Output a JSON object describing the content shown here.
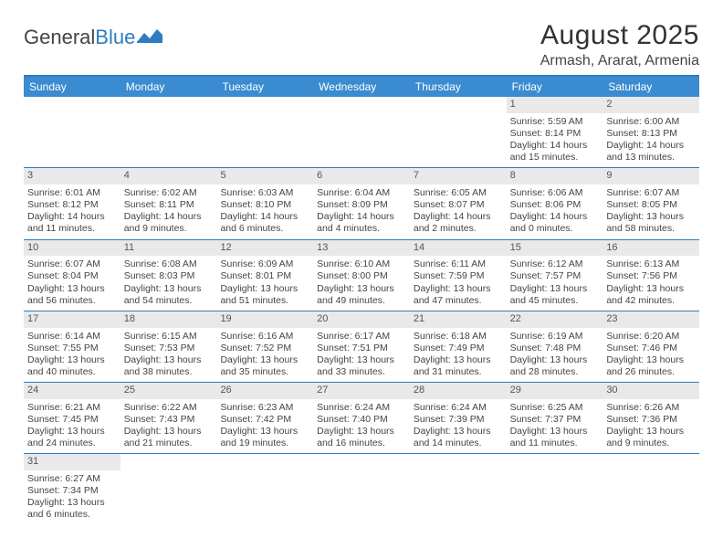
{
  "logo": {
    "text_a": "General",
    "text_b": "Blue"
  },
  "title": "August 2025",
  "subtitle": "Armash, Ararat, Armenia",
  "colors": {
    "header_bg": "#3a8bd0",
    "border": "#2f7cc0",
    "daynum_bg": "#e9e9e9",
    "text": "#444444",
    "title": "#333333"
  },
  "dow": [
    "Sunday",
    "Monday",
    "Tuesday",
    "Wednesday",
    "Thursday",
    "Friday",
    "Saturday"
  ],
  "weeks": [
    [
      null,
      null,
      null,
      null,
      null,
      {
        "n": "1",
        "sr": "Sunrise: 5:59 AM",
        "ss": "Sunset: 8:14 PM",
        "d1": "Daylight: 14 hours",
        "d2": "and 15 minutes."
      },
      {
        "n": "2",
        "sr": "Sunrise: 6:00 AM",
        "ss": "Sunset: 8:13 PM",
        "d1": "Daylight: 14 hours",
        "d2": "and 13 minutes."
      }
    ],
    [
      {
        "n": "3",
        "sr": "Sunrise: 6:01 AM",
        "ss": "Sunset: 8:12 PM",
        "d1": "Daylight: 14 hours",
        "d2": "and 11 minutes."
      },
      {
        "n": "4",
        "sr": "Sunrise: 6:02 AM",
        "ss": "Sunset: 8:11 PM",
        "d1": "Daylight: 14 hours",
        "d2": "and 9 minutes."
      },
      {
        "n": "5",
        "sr": "Sunrise: 6:03 AM",
        "ss": "Sunset: 8:10 PM",
        "d1": "Daylight: 14 hours",
        "d2": "and 6 minutes."
      },
      {
        "n": "6",
        "sr": "Sunrise: 6:04 AM",
        "ss": "Sunset: 8:09 PM",
        "d1": "Daylight: 14 hours",
        "d2": "and 4 minutes."
      },
      {
        "n": "7",
        "sr": "Sunrise: 6:05 AM",
        "ss": "Sunset: 8:07 PM",
        "d1": "Daylight: 14 hours",
        "d2": "and 2 minutes."
      },
      {
        "n": "8",
        "sr": "Sunrise: 6:06 AM",
        "ss": "Sunset: 8:06 PM",
        "d1": "Daylight: 14 hours",
        "d2": "and 0 minutes."
      },
      {
        "n": "9",
        "sr": "Sunrise: 6:07 AM",
        "ss": "Sunset: 8:05 PM",
        "d1": "Daylight: 13 hours",
        "d2": "and 58 minutes."
      }
    ],
    [
      {
        "n": "10",
        "sr": "Sunrise: 6:07 AM",
        "ss": "Sunset: 8:04 PM",
        "d1": "Daylight: 13 hours",
        "d2": "and 56 minutes."
      },
      {
        "n": "11",
        "sr": "Sunrise: 6:08 AM",
        "ss": "Sunset: 8:03 PM",
        "d1": "Daylight: 13 hours",
        "d2": "and 54 minutes."
      },
      {
        "n": "12",
        "sr": "Sunrise: 6:09 AM",
        "ss": "Sunset: 8:01 PM",
        "d1": "Daylight: 13 hours",
        "d2": "and 51 minutes."
      },
      {
        "n": "13",
        "sr": "Sunrise: 6:10 AM",
        "ss": "Sunset: 8:00 PM",
        "d1": "Daylight: 13 hours",
        "d2": "and 49 minutes."
      },
      {
        "n": "14",
        "sr": "Sunrise: 6:11 AM",
        "ss": "Sunset: 7:59 PM",
        "d1": "Daylight: 13 hours",
        "d2": "and 47 minutes."
      },
      {
        "n": "15",
        "sr": "Sunrise: 6:12 AM",
        "ss": "Sunset: 7:57 PM",
        "d1": "Daylight: 13 hours",
        "d2": "and 45 minutes."
      },
      {
        "n": "16",
        "sr": "Sunrise: 6:13 AM",
        "ss": "Sunset: 7:56 PM",
        "d1": "Daylight: 13 hours",
        "d2": "and 42 minutes."
      }
    ],
    [
      {
        "n": "17",
        "sr": "Sunrise: 6:14 AM",
        "ss": "Sunset: 7:55 PM",
        "d1": "Daylight: 13 hours",
        "d2": "and 40 minutes."
      },
      {
        "n": "18",
        "sr": "Sunrise: 6:15 AM",
        "ss": "Sunset: 7:53 PM",
        "d1": "Daylight: 13 hours",
        "d2": "and 38 minutes."
      },
      {
        "n": "19",
        "sr": "Sunrise: 6:16 AM",
        "ss": "Sunset: 7:52 PM",
        "d1": "Daylight: 13 hours",
        "d2": "and 35 minutes."
      },
      {
        "n": "20",
        "sr": "Sunrise: 6:17 AM",
        "ss": "Sunset: 7:51 PM",
        "d1": "Daylight: 13 hours",
        "d2": "and 33 minutes."
      },
      {
        "n": "21",
        "sr": "Sunrise: 6:18 AM",
        "ss": "Sunset: 7:49 PM",
        "d1": "Daylight: 13 hours",
        "d2": "and 31 minutes."
      },
      {
        "n": "22",
        "sr": "Sunrise: 6:19 AM",
        "ss": "Sunset: 7:48 PM",
        "d1": "Daylight: 13 hours",
        "d2": "and 28 minutes."
      },
      {
        "n": "23",
        "sr": "Sunrise: 6:20 AM",
        "ss": "Sunset: 7:46 PM",
        "d1": "Daylight: 13 hours",
        "d2": "and 26 minutes."
      }
    ],
    [
      {
        "n": "24",
        "sr": "Sunrise: 6:21 AM",
        "ss": "Sunset: 7:45 PM",
        "d1": "Daylight: 13 hours",
        "d2": "and 24 minutes."
      },
      {
        "n": "25",
        "sr": "Sunrise: 6:22 AM",
        "ss": "Sunset: 7:43 PM",
        "d1": "Daylight: 13 hours",
        "d2": "and 21 minutes."
      },
      {
        "n": "26",
        "sr": "Sunrise: 6:23 AM",
        "ss": "Sunset: 7:42 PM",
        "d1": "Daylight: 13 hours",
        "d2": "and 19 minutes."
      },
      {
        "n": "27",
        "sr": "Sunrise: 6:24 AM",
        "ss": "Sunset: 7:40 PM",
        "d1": "Daylight: 13 hours",
        "d2": "and 16 minutes."
      },
      {
        "n": "28",
        "sr": "Sunrise: 6:24 AM",
        "ss": "Sunset: 7:39 PM",
        "d1": "Daylight: 13 hours",
        "d2": "and 14 minutes."
      },
      {
        "n": "29",
        "sr": "Sunrise: 6:25 AM",
        "ss": "Sunset: 7:37 PM",
        "d1": "Daylight: 13 hours",
        "d2": "and 11 minutes."
      },
      {
        "n": "30",
        "sr": "Sunrise: 6:26 AM",
        "ss": "Sunset: 7:36 PM",
        "d1": "Daylight: 13 hours",
        "d2": "and 9 minutes."
      }
    ],
    [
      {
        "n": "31",
        "sr": "Sunrise: 6:27 AM",
        "ss": "Sunset: 7:34 PM",
        "d1": "Daylight: 13 hours",
        "d2": "and 6 minutes."
      },
      null,
      null,
      null,
      null,
      null,
      null
    ]
  ]
}
